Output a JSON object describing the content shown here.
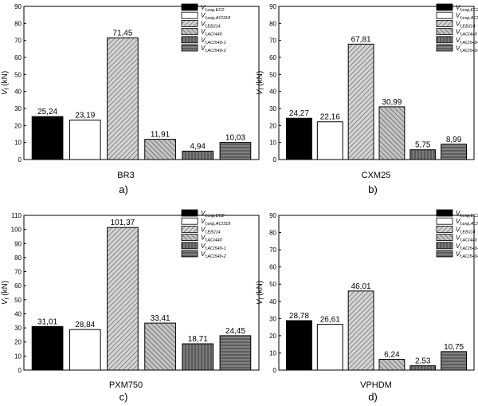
{
  "colors": {
    "black": "#000000",
    "white": "#ffffff",
    "light_hatch": "#d4d4d4",
    "mid_hatch": "#bdbdbd",
    "dark_vertical": "#6e6e6e",
    "dark_horizontal": "#757575"
  },
  "legend": {
    "main": [
      "V",
      "V",
      "V",
      "V",
      "V",
      "V"
    ],
    "subscripts": [
      "f,exp,EC2",
      "f,exp,ACI318",
      "f,EBJ14",
      "f,ACI440",
      "f,ACI549-1",
      "f,ACI549-2"
    ]
  },
  "chart_data": [
    {
      "type": "bar",
      "panel_label": "a)",
      "xlabel": "BR3",
      "ylabel": "V",
      "ylabel_sub": "f",
      "ylabel_unit": "(kN)",
      "ylim": [
        0,
        90
      ],
      "yticks": [
        "0",
        "10",
        "20",
        "30",
        "40",
        "50",
        "60",
        "70",
        "80",
        "90"
      ],
      "series": [
        "Vf,exp,EC2",
        "Vf,exp,ACI318",
        "Vf,EBJ14",
        "Vf,ACI440",
        "Vf,ACI549-1",
        "Vf,ACI549-2"
      ],
      "values": [
        25.24,
        23.19,
        71.45,
        11.91,
        4.94,
        10.03
      ],
      "labels": [
        "25,24",
        "23,19",
        "71,45",
        "11,91",
        "4,94",
        "10,03"
      ]
    },
    {
      "type": "bar",
      "panel_label": "b)",
      "xlabel": "CXM25",
      "ylabel": "V",
      "ylabel_sub": "f",
      "ylabel_unit": "(kN)",
      "ylim": [
        0,
        90
      ],
      "yticks": [
        "0",
        "10",
        "20",
        "30",
        "40",
        "50",
        "60",
        "70",
        "80",
        "90"
      ],
      "series": [
        "Vf,exp,EC2",
        "Vf,exp,ACI318",
        "Vf,EBJ14",
        "Vf,ACI440",
        "Vf,ACI549-1",
        "Vf,ACI549-2"
      ],
      "values": [
        24.27,
        22.16,
        67.81,
        30.99,
        5.75,
        8.99
      ],
      "labels": [
        "24,27",
        "22,16",
        "67,81",
        "30,99",
        "5,75",
        "8,99"
      ]
    },
    {
      "type": "bar",
      "panel_label": "c)",
      "xlabel": "PXM750",
      "ylabel": "V",
      "ylabel_sub": "f",
      "ylabel_unit": "(kN)",
      "ylim": [
        0,
        110
      ],
      "yticks": [
        "0",
        "10",
        "20",
        "30",
        "40",
        "50",
        "60",
        "70",
        "80",
        "90",
        "100",
        "110"
      ],
      "series": [
        "Vf,exp,EC2",
        "Vf,exp,ACI318",
        "Vf,EBJ14",
        "Vf,ACI440",
        "Vf,ACI549-1",
        "Vf,ACI549-2"
      ],
      "values": [
        31.01,
        28.84,
        101.37,
        33.41,
        18.71,
        24.45
      ],
      "labels": [
        "31,01",
        "28,84",
        "101,37",
        "33,41",
        "18,71",
        "24,45"
      ]
    },
    {
      "type": "bar",
      "panel_label": "d)",
      "xlabel": "VPHDM",
      "ylabel": "V",
      "ylabel_sub": "f",
      "ylabel_unit": "(kN)",
      "ylim": [
        0,
        90
      ],
      "yticks": [
        "0",
        "10",
        "20",
        "30",
        "40",
        "50",
        "60",
        "70",
        "80",
        "90"
      ],
      "series": [
        "Vf,exp,EC2",
        "Vf,exp,ACI318",
        "Vf,EBJ14",
        "Vf,ACI440",
        "Vf,ACI549-1",
        "Vf,ACI549-2"
      ],
      "values": [
        28.78,
        26.61,
        46.01,
        6.24,
        2.53,
        10.75
      ],
      "labels": [
        "28,78",
        "26,61",
        "46,01",
        "6,24",
        "2,53",
        "10,75"
      ]
    }
  ]
}
